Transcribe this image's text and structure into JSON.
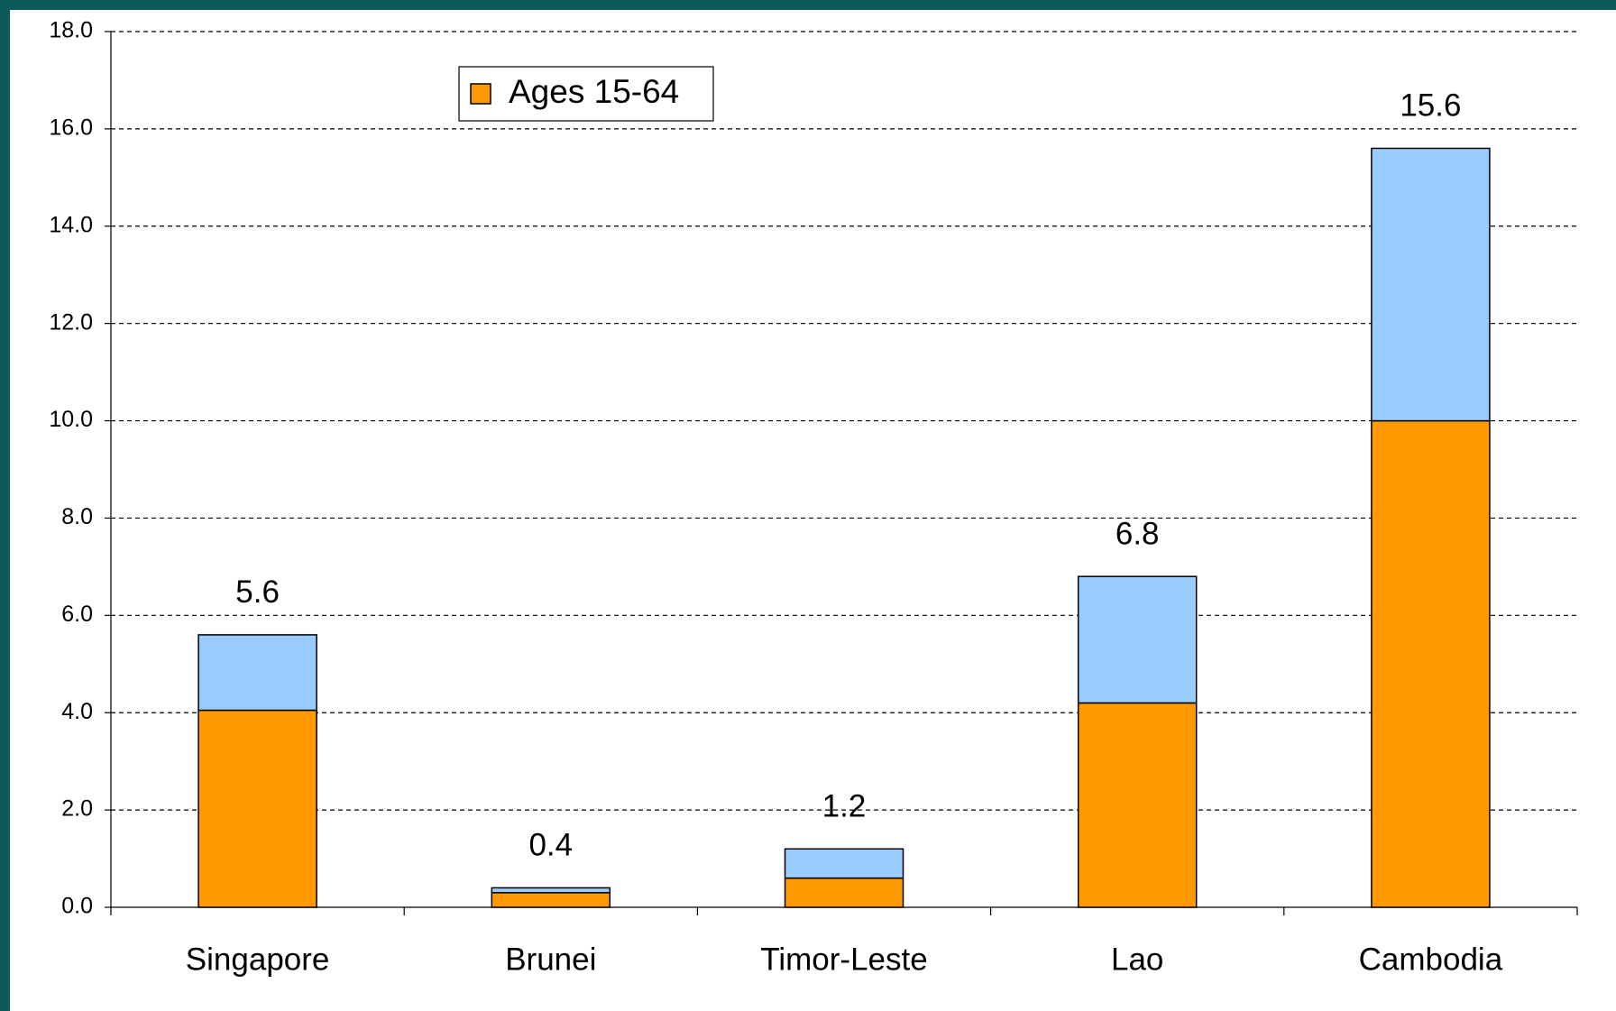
{
  "chart_data": {
    "type": "stacked_bar",
    "categories": [
      "Singapore",
      "Brunei",
      "Timor-Leste",
      "Lao",
      "Cambodia"
    ],
    "series": [
      {
        "name": "Ages 15-64",
        "color": "#ff9900",
        "values": [
          4.05,
          0.3,
          0.6,
          4.2,
          10.0
        ]
      },
      {
        "color": "#99ccff",
        "values": [
          1.55,
          0.1,
          0.6,
          2.6,
          5.6
        ]
      }
    ],
    "totals": [
      5.6,
      0.4,
      1.2,
      6.8,
      15.6
    ],
    "ylim": [
      0,
      18
    ],
    "yticks": [
      {
        "value": 0,
        "label": "0.0"
      },
      {
        "value": 2,
        "label": "2.0"
      },
      {
        "value": 4,
        "label": "4.0"
      },
      {
        "value": 6,
        "label": "6.0"
      },
      {
        "value": 8,
        "label": "8.0"
      },
      {
        "value": 10,
        "label": "10.0"
      },
      {
        "value": 12,
        "label": "12.0"
      },
      {
        "value": 14,
        "label": "14.0"
      },
      {
        "value": 16,
        "label": "16.0"
      },
      {
        "value": 18,
        "label": "18.0"
      }
    ],
    "grid": true,
    "legend": "top-left"
  }
}
